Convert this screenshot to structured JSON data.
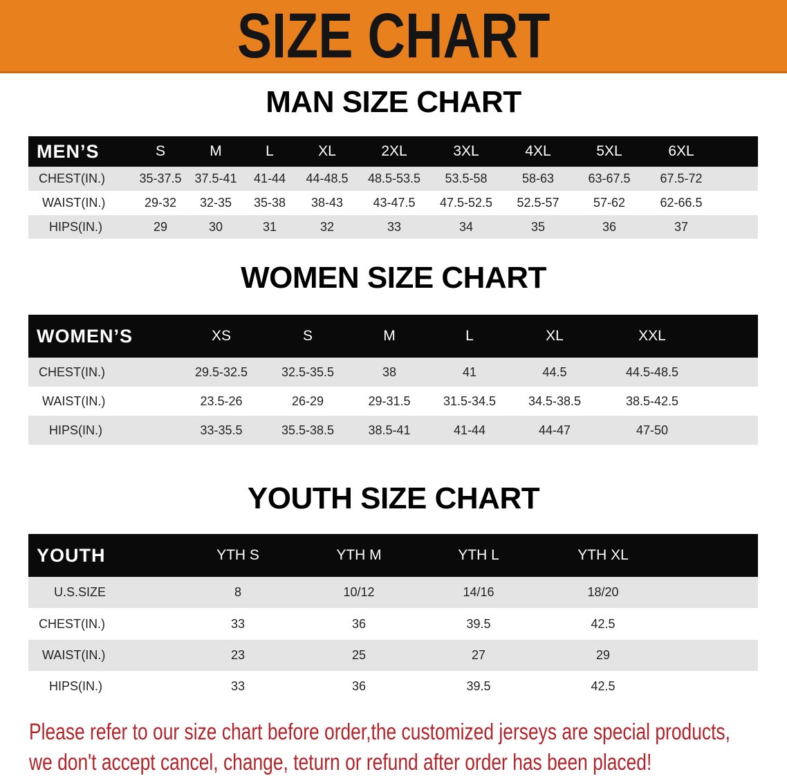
{
  "banner": {
    "title": "SIZE CHART",
    "color": "#E8801E"
  },
  "men": {
    "title": "MAN SIZE CHART",
    "header": "MEN’S",
    "sizes": [
      "S",
      "M",
      "L",
      "XL",
      "2XL",
      "3XL",
      "4XL",
      "5XL",
      "6XL"
    ],
    "rows": [
      {
        "label": "CHEST(IN.)",
        "values": [
          "35-37.5",
          "37.5-41",
          "41-44",
          "44-48.5",
          "48.5-53.5",
          "53.5-58",
          "58-63",
          "63-67.5",
          "67.5-72"
        ]
      },
      {
        "label": "WAIST(IN.)",
        "values": [
          "29-32",
          "32-35",
          "35-38",
          "38-43",
          "43-47.5",
          "47.5-52.5",
          "52.5-57",
          "57-62",
          "62-66.5"
        ]
      },
      {
        "label": "HIPS(IN.)",
        "values": [
          "29",
          "30",
          "31",
          "32",
          "33",
          "34",
          "35",
          "36",
          "37"
        ]
      }
    ]
  },
  "women": {
    "title": "WOMEN SIZE CHART",
    "header": "WOMEN’S",
    "sizes": [
      "XS",
      "S",
      "M",
      "L",
      "XL",
      "XXL"
    ],
    "rows": [
      {
        "label": "CHEST(IN.)",
        "values": [
          "29.5-32.5",
          "32.5-35.5",
          "38",
          "41",
          "44.5",
          "44.5-48.5"
        ]
      },
      {
        "label": "WAIST(IN.)",
        "values": [
          "23.5-26",
          "26-29",
          "29-31.5",
          "31.5-34.5",
          "34.5-38.5",
          "38.5-42.5"
        ]
      },
      {
        "label": "HIPS(IN.)",
        "values": [
          "33-35.5",
          "35.5-38.5",
          "38.5-41",
          "41-44",
          "44-47",
          "47-50"
        ]
      }
    ]
  },
  "youth": {
    "title": "YOUTH SIZE CHART",
    "header": "YOUTH",
    "sizes": [
      "YTH S",
      "YTH M",
      "YTH L",
      "YTH XL"
    ],
    "rows": [
      {
        "label": "U.S.SIZE",
        "values": [
          "8",
          "10/12",
          "14/16",
          "18/20"
        ]
      },
      {
        "label": "CHEST(IN.)",
        "values": [
          "33",
          "36",
          "39.5",
          "42.5"
        ]
      },
      {
        "label": "WAIST(IN.)",
        "values": [
          "23",
          "25",
          "27",
          "29"
        ]
      },
      {
        "label": "HIPS(IN.)",
        "values": [
          "33",
          "36",
          "39.5",
          "42.5"
        ]
      }
    ]
  },
  "note": {
    "line1": "Please refer to our size chart before order,the customized jerseys are special products,",
    "line2": "we don't accept cancel, change, teturn or refund after order has been placed!",
    "color": "#b3232a"
  }
}
